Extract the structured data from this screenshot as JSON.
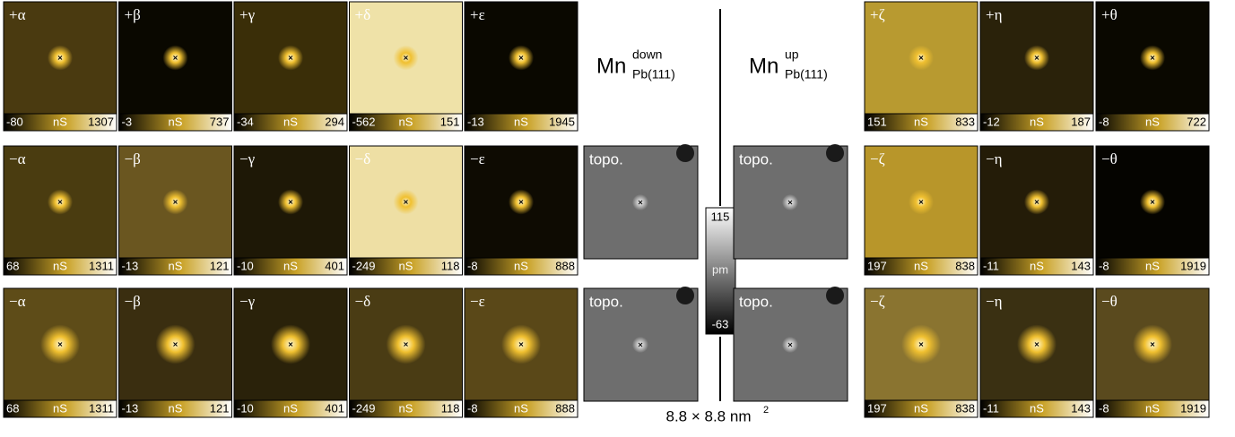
{
  "left_grid": [
    [
      {
        "label": "+α",
        "min": -80,
        "unit": "nS",
        "max": 1307
      },
      {
        "label": "+β",
        "min": -3,
        "unit": "nS",
        "max": 737
      },
      {
        "label": "+γ",
        "min": -34,
        "unit": "nS",
        "max": 294
      },
      {
        "label": "+δ",
        "min": -562,
        "unit": "nS",
        "max": 151
      },
      {
        "label": "+ε",
        "min": -13,
        "unit": "nS",
        "max": 1945
      }
    ],
    [
      {
        "label": "−α",
        "min": 68,
        "unit": "nS",
        "max": 1311
      },
      {
        "label": "−β",
        "min": -13,
        "unit": "nS",
        "max": 121
      },
      {
        "label": "−γ",
        "min": -10,
        "unit": "nS",
        "max": 401
      },
      {
        "label": "−δ",
        "min": -249,
        "unit": "nS",
        "max": 118
      },
      {
        "label": "−ε",
        "min": -8,
        "unit": "nS",
        "max": 888
      }
    ],
    [
      {
        "label": "−α",
        "min": 68,
        "unit": "nS",
        "max": 1311
      },
      {
        "label": "−β",
        "min": -13,
        "unit": "nS",
        "max": 121
      },
      {
        "label": "−γ",
        "min": -10,
        "unit": "nS",
        "max": 401
      },
      {
        "label": "−δ",
        "min": -249,
        "unit": "nS",
        "max": 118
      },
      {
        "label": "−ε",
        "min": -8,
        "unit": "nS",
        "max": 888
      }
    ]
  ],
  "right_grid": [
    [
      {
        "label": "+ζ",
        "min": 151,
        "unit": "nS",
        "max": 833
      },
      {
        "label": "+η",
        "min": -12,
        "unit": "nS",
        "max": 187
      },
      {
        "label": "+θ",
        "min": -8,
        "unit": "nS",
        "max": 722
      }
    ],
    [
      {
        "label": "−ζ",
        "min": 197,
        "unit": "nS",
        "max": 838
      },
      {
        "label": "−η",
        "min": -11,
        "unit": "nS",
        "max": 143
      },
      {
        "label": "−θ",
        "min": -8,
        "unit": "nS",
        "max": 1919
      }
    ],
    [
      {
        "label": "−ζ",
        "min": 197,
        "unit": "nS",
        "max": 838
      },
      {
        "label": "−η",
        "min": -11,
        "unit": "nS",
        "max": 143
      },
      {
        "label": "−θ",
        "min": -8,
        "unit": "nS",
        "max": 1919
      }
    ]
  ],
  "mn_down": {
    "base": "Mn",
    "sup": "down",
    "sub": "Pb(111)"
  },
  "mn_up": {
    "base": "Mn",
    "sup": "up",
    "sub": "Pb(111)"
  },
  "topo": [
    {
      "label": "topo."
    },
    {
      "label": "topo."
    },
    {
      "label": "topo."
    },
    {
      "label": "topo."
    }
  ],
  "scale": {
    "max": 115,
    "unit": "pm",
    "min": -63
  },
  "size_label": {
    "text": "8.8 × 8.8 nm",
    "sup": "2"
  }
}
